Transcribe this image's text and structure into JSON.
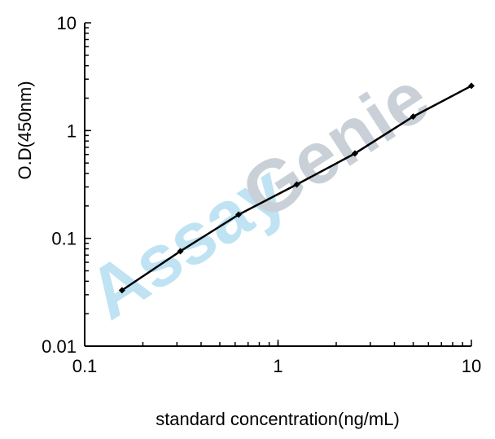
{
  "chart_data": {
    "type": "line",
    "title": "",
    "xlabel": "standard concentration(ng/mL)",
    "ylabel": "O.D(450nm)",
    "x_scale": "log",
    "y_scale": "log",
    "xlim": [
      0.1,
      10
    ],
    "ylim": [
      0.01,
      10
    ],
    "x_ticks": [
      "0.1",
      "1",
      "10"
    ],
    "y_ticks": [
      "0.01",
      "0.1",
      "1",
      "10"
    ],
    "grid": false,
    "legend": "none",
    "series": [
      {
        "x": [
          0.156,
          0.3125,
          0.625,
          1.25,
          2.5,
          5,
          10
        ],
        "y": [
          0.033,
          0.076,
          0.166,
          0.316,
          0.614,
          1.35,
          2.6
        ],
        "color": "#000000",
        "marker": "diamond"
      }
    ],
    "watermark": {
      "text_a": "Assay",
      "text_b": "Genie",
      "color_a": "#bfe3f3",
      "color_b": "#c9d0d8"
    }
  }
}
